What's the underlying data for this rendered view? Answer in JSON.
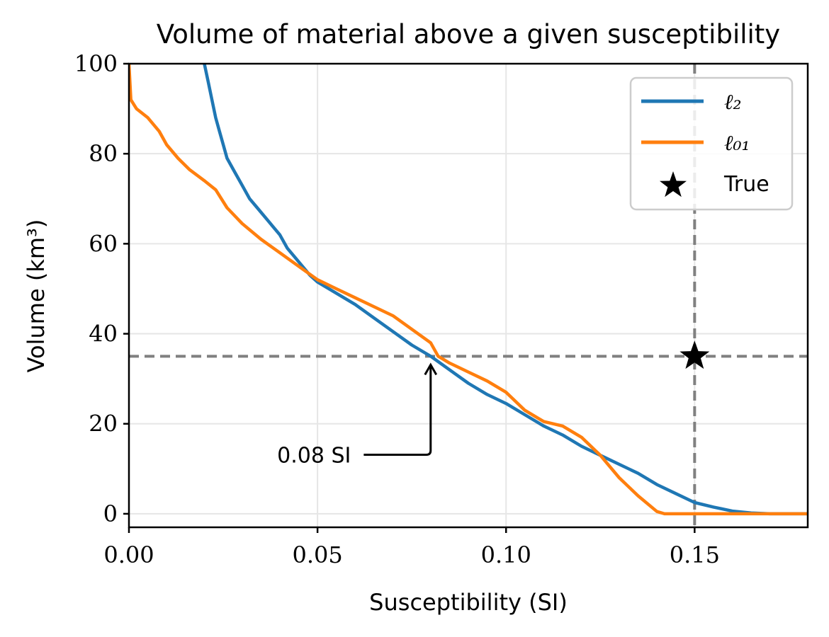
{
  "chart_data": {
    "type": "line",
    "title": "Volume of material above a given susceptibility",
    "xlabel": "Susceptibility (SI)",
    "ylabel": "Volume (km³)",
    "xlim": [
      0,
      0.18
    ],
    "ylim": [
      -3,
      100
    ],
    "grid": true,
    "legend_position": "top-right",
    "x_ticks": [
      {
        "value": 0.0,
        "label": "0.00"
      },
      {
        "value": 0.05,
        "label": "0.05"
      },
      {
        "value": 0.1,
        "label": "0.10"
      },
      {
        "value": 0.15,
        "label": "0.15"
      }
    ],
    "y_ticks": [
      {
        "value": 0,
        "label": "0"
      },
      {
        "value": 20,
        "label": "20"
      },
      {
        "value": 40,
        "label": "40"
      },
      {
        "value": 60,
        "label": "60"
      },
      {
        "value": 80,
        "label": "80"
      },
      {
        "value": 100,
        "label": "100"
      }
    ],
    "series": [
      {
        "name": "ℓ₂",
        "color": "#1f77b4",
        "points": [
          [
            0.02,
            100
          ],
          [
            0.021,
            96
          ],
          [
            0.022,
            92
          ],
          [
            0.023,
            88
          ],
          [
            0.024,
            85
          ],
          [
            0.025,
            82
          ],
          [
            0.026,
            79
          ],
          [
            0.028,
            76
          ],
          [
            0.03,
            73
          ],
          [
            0.032,
            70
          ],
          [
            0.034,
            68
          ],
          [
            0.036,
            66
          ],
          [
            0.038,
            64
          ],
          [
            0.04,
            62
          ],
          [
            0.042,
            59
          ],
          [
            0.044,
            57
          ],
          [
            0.046,
            55
          ],
          [
            0.048,
            53
          ],
          [
            0.05,
            51.5
          ],
          [
            0.052,
            50.5
          ],
          [
            0.055,
            49
          ],
          [
            0.06,
            46.5
          ],
          [
            0.065,
            43.5
          ],
          [
            0.07,
            40.5
          ],
          [
            0.075,
            37.5
          ],
          [
            0.08,
            35
          ],
          [
            0.085,
            32
          ],
          [
            0.09,
            29
          ],
          [
            0.095,
            26.5
          ],
          [
            0.1,
            24.5
          ],
          [
            0.105,
            22
          ],
          [
            0.11,
            19.5
          ],
          [
            0.115,
            17.5
          ],
          [
            0.12,
            15
          ],
          [
            0.125,
            13
          ],
          [
            0.13,
            11
          ],
          [
            0.135,
            9
          ],
          [
            0.14,
            6.5
          ],
          [
            0.145,
            4.5
          ],
          [
            0.15,
            2.5
          ],
          [
            0.155,
            1.5
          ],
          [
            0.16,
            0.6
          ],
          [
            0.165,
            0.2
          ],
          [
            0.17,
            0
          ],
          [
            0.18,
            0
          ]
        ]
      },
      {
        "name": "ℓ₀₁",
        "color": "#ff7f0e",
        "points": [
          [
            0.0,
            100
          ],
          [
            0.0005,
            92
          ],
          [
            0.002,
            90
          ],
          [
            0.005,
            88
          ],
          [
            0.008,
            85
          ],
          [
            0.01,
            82
          ],
          [
            0.013,
            79
          ],
          [
            0.016,
            76.5
          ],
          [
            0.02,
            74
          ],
          [
            0.023,
            72
          ],
          [
            0.026,
            68
          ],
          [
            0.03,
            64.5
          ],
          [
            0.035,
            61
          ],
          [
            0.04,
            58
          ],
          [
            0.045,
            55
          ],
          [
            0.05,
            52
          ],
          [
            0.055,
            50
          ],
          [
            0.06,
            48
          ],
          [
            0.065,
            46
          ],
          [
            0.07,
            44
          ],
          [
            0.075,
            41
          ],
          [
            0.08,
            38
          ],
          [
            0.082,
            35
          ],
          [
            0.085,
            33.5
          ],
          [
            0.09,
            31.5
          ],
          [
            0.095,
            29.5
          ],
          [
            0.1,
            27
          ],
          [
            0.105,
            23
          ],
          [
            0.11,
            20.5
          ],
          [
            0.115,
            19.5
          ],
          [
            0.12,
            17
          ],
          [
            0.125,
            13
          ],
          [
            0.13,
            8
          ],
          [
            0.135,
            4
          ],
          [
            0.14,
            0.5
          ],
          [
            0.142,
            0
          ],
          [
            0.15,
            0
          ],
          [
            0.16,
            0
          ],
          [
            0.18,
            0
          ]
        ]
      }
    ],
    "reference_lines": {
      "horizontal_y": 35,
      "vertical_x": 0.15,
      "color": "#808080",
      "style": "dashed"
    },
    "true_marker": {
      "label": "True",
      "x": 0.15,
      "y": 35,
      "marker": "star",
      "color": "#000000"
    },
    "annotation": {
      "text": "0.08 SI",
      "target": [
        0.08,
        35
      ],
      "text_anchor": [
        0.057,
        15
      ]
    }
  }
}
